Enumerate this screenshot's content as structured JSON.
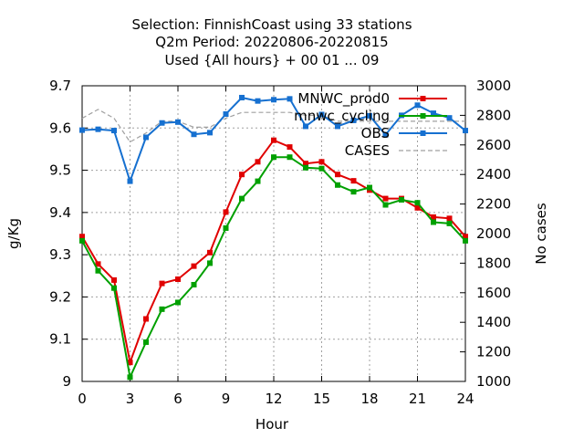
{
  "chart_data": {
    "type": "line",
    "title_lines": [
      "Selection: FinnishCoast using    33 stations",
      "Q2m   Period: 20220806-20220815",
      "Used {All hours} + 00 01 ... 09"
    ],
    "xlabel": "Hour",
    "ylabel": "g/Kg",
    "y2label": "No cases",
    "xlim": [
      0,
      24
    ],
    "ylim": [
      9.0,
      9.7
    ],
    "y2lim": [
      1000,
      3000
    ],
    "x_ticks": [
      0,
      3,
      6,
      9,
      12,
      15,
      18,
      21,
      24
    ],
    "y_ticks": [
      "9",
      "9.1",
      "9.2",
      "9.3",
      "9.4",
      "9.5",
      "9.6",
      "9.7"
    ],
    "y2_ticks": [
      "1000",
      "1200",
      "1400",
      "1600",
      "1800",
      "2000",
      "2200",
      "2400",
      "2600",
      "2800",
      "3000"
    ],
    "grid": true,
    "legend_position": "top-right",
    "x": [
      0,
      1,
      2,
      3,
      4,
      5,
      6,
      7,
      8,
      9,
      10,
      11,
      12,
      13,
      14,
      15,
      16,
      17,
      18,
      19,
      20,
      21,
      22,
      23,
      24
    ],
    "series": [
      {
        "name": "MNWC_prod0",
        "axis": "y1",
        "color": "#e00000",
        "marker": "square",
        "values": [
          9.343,
          9.278,
          9.24,
          9.045,
          9.148,
          9.232,
          9.242,
          9.273,
          9.305,
          9.401,
          9.49,
          9.52,
          9.571,
          9.555,
          9.516,
          9.52,
          9.49,
          9.475,
          9.453,
          9.433,
          9.433,
          9.411,
          9.389,
          9.386,
          9.343
        ]
      },
      {
        "name": "mnwc_cycling",
        "axis": "y1",
        "color": "#00a000",
        "marker": "square",
        "values": [
          9.333,
          9.262,
          9.221,
          9.01,
          9.093,
          9.171,
          9.187,
          9.229,
          9.28,
          9.363,
          9.433,
          9.474,
          9.531,
          9.531,
          9.506,
          9.504,
          9.465,
          9.449,
          9.459,
          9.418,
          9.43,
          9.423,
          9.377,
          9.374,
          9.333
        ]
      },
      {
        "name": "OBS",
        "axis": "y1",
        "color": "#1670d0",
        "marker": "square",
        "values": [
          9.595,
          9.597,
          9.594,
          9.474,
          9.578,
          9.612,
          9.614,
          9.585,
          9.589,
          9.633,
          9.672,
          9.664,
          9.667,
          9.669,
          9.604,
          9.632,
          9.604,
          9.618,
          9.629,
          9.584,
          9.63,
          9.654,
          9.635,
          9.624,
          9.594
        ]
      },
      {
        "name": "CASES",
        "axis": "y2",
        "color": "#a0a0a0",
        "marker": "none",
        "dashed": true,
        "values": [
          2780,
          2840,
          2780,
          2620,
          2680,
          2760,
          2760,
          2720,
          2720,
          2780,
          2820,
          2820,
          2820,
          2820,
          2800,
          2800,
          2760,
          2760,
          2760,
          2760,
          2760,
          2760,
          2760,
          2760,
          2760
        ]
      }
    ]
  }
}
